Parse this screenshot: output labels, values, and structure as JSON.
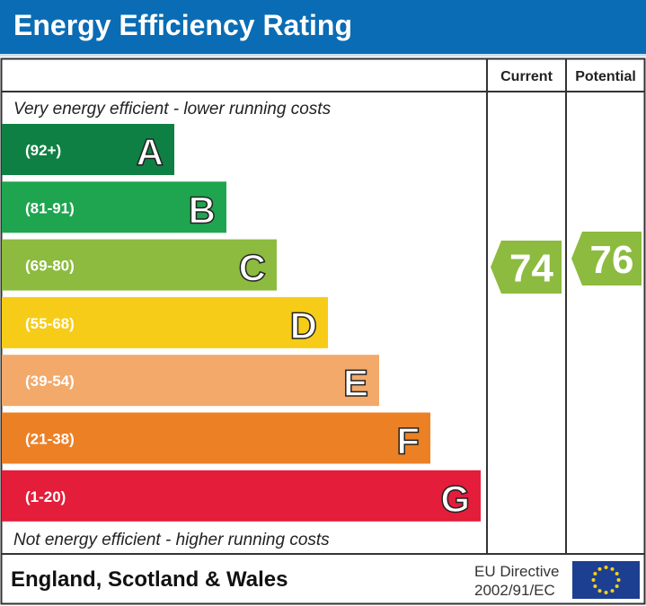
{
  "title": "Energy Efficiency Rating",
  "columns": {
    "current": "Current",
    "potential": "Potential"
  },
  "top_note": "Very energy efficient - lower running costs",
  "bottom_note": "Not energy efficient - higher running costs",
  "footer": {
    "region": "England, Scotland & Wales",
    "directive_line1": "EU Directive",
    "directive_line2": "2002/91/EC",
    "flag_icon": "eu-flag-icon"
  },
  "chart_data": {
    "type": "bar",
    "bands": [
      {
        "letter": "A",
        "range": "(92+)",
        "color": "#0f8044"
      },
      {
        "letter": "B",
        "range": "(81-91)",
        "color": "#1fa54f"
      },
      {
        "letter": "C",
        "range": "(69-80)",
        "color": "#8cbb3f"
      },
      {
        "letter": "D",
        "range": "(55-68)",
        "color": "#f6cc18"
      },
      {
        "letter": "E",
        "range": "(39-54)",
        "color": "#f2a96a"
      },
      {
        "letter": "F",
        "range": "(21-38)",
        "color": "#ec8025"
      },
      {
        "letter": "G",
        "range": "(1-20)",
        "color": "#e31d3a"
      }
    ],
    "current": {
      "value": 74,
      "band": "C",
      "color": "#8cbb3f"
    },
    "potential": {
      "value": 76,
      "band": "C",
      "color": "#8cbb3f"
    }
  }
}
